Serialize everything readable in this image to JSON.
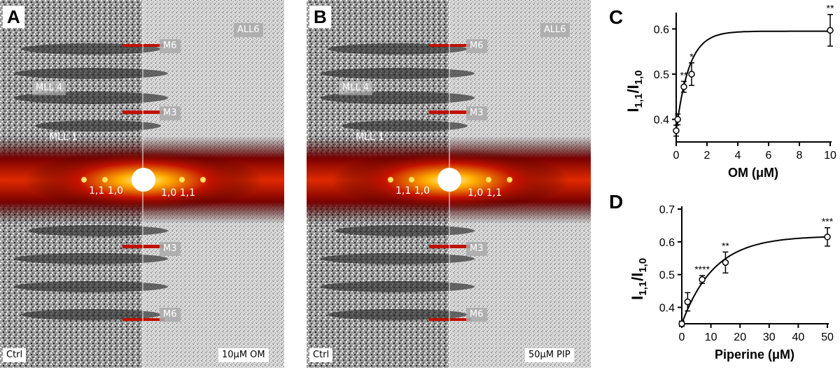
{
  "panels": {
    "A": {
      "letter": "A",
      "labels": {
        "all6": "ALL6",
        "m6_top": "M6",
        "mll4": "MLL 4",
        "m3_top": "M3",
        "mll1": "MLL 1",
        "refl_left": "1,1  1,0",
        "refl_right": "1,0  1,1",
        "m3_bottom": "M3",
        "m6_bottom": "M6",
        "left_condition": "Ctrl",
        "right_condition": "10μM OM"
      }
    },
    "B": {
      "letter": "B",
      "labels": {
        "all6": "ALL6",
        "m6_top": "M6",
        "mll4": "MLL 4",
        "m3_top": "M3",
        "mll1": "MLL 1",
        "refl_left": "1,1  1,0",
        "refl_right": "1,0  1,1",
        "m3_bottom": "M3",
        "m6_bottom": "M6",
        "left_condition": "Ctrl",
        "right_condition": "50μM PIP"
      }
    }
  },
  "chart_data": [
    {
      "panel": "C",
      "type": "scatter",
      "xlabel": "OM (μM)",
      "ylabel_main": "I",
      "ylabel_sub1": "1,1",
      "ylabel_mid": "/I",
      "ylabel_sub2": "1,0",
      "xlim": [
        0,
        10
      ],
      "ylim": [
        0.35,
        0.63
      ],
      "xticks": [
        "0",
        "2",
        "4",
        "6",
        "8",
        "10"
      ],
      "yticks": [
        "0.4",
        "0.5",
        "0.6"
      ],
      "points": [
        {
          "x": 0,
          "y": 0.375,
          "err": 0.012,
          "sig": ""
        },
        {
          "x": 0.1,
          "y": 0.4,
          "err": 0.012,
          "sig": ""
        },
        {
          "x": 0.5,
          "y": 0.472,
          "err": 0.012,
          "sig": "**"
        },
        {
          "x": 1,
          "y": 0.5,
          "err": 0.025,
          "sig": "*"
        },
        {
          "x": 10,
          "y": 0.597,
          "err": 0.035,
          "sig": "**"
        }
      ],
      "fit": {
        "ymin": 0.375,
        "ymax": 0.595,
        "k": 1.2
      }
    },
    {
      "panel": "D",
      "type": "scatter",
      "xlabel": "Piperine (μM)",
      "ylabel_main": "I",
      "ylabel_sub1": "1,1",
      "ylabel_mid": "/I",
      "ylabel_sub2": "1,0",
      "xlim": [
        0,
        50
      ],
      "ylim": [
        0.35,
        0.7
      ],
      "xticks": [
        "0",
        "10",
        "20",
        "30",
        "40",
        "50"
      ],
      "yticks": [
        "0.4",
        "0.5",
        "0.6",
        "0.7"
      ],
      "points": [
        {
          "x": 0,
          "y": 0.35,
          "err": 0.008,
          "sig": ""
        },
        {
          "x": 2,
          "y": 0.417,
          "err": 0.028,
          "sig": ""
        },
        {
          "x": 7,
          "y": 0.485,
          "err": 0.012,
          "sig": "****"
        },
        {
          "x": 15,
          "y": 0.537,
          "err": 0.032,
          "sig": "**"
        },
        {
          "x": 50,
          "y": 0.615,
          "err": 0.028,
          "sig": "***"
        }
      ],
      "fit": {
        "ymin": 0.35,
        "ymax": 0.618,
        "k": 0.09
      }
    }
  ],
  "colors": {
    "diffraction_core": "#ffffff",
    "diffraction_mid": "#ffcc00",
    "diffraction_outer": "#cc1100",
    "background": "#000000"
  }
}
